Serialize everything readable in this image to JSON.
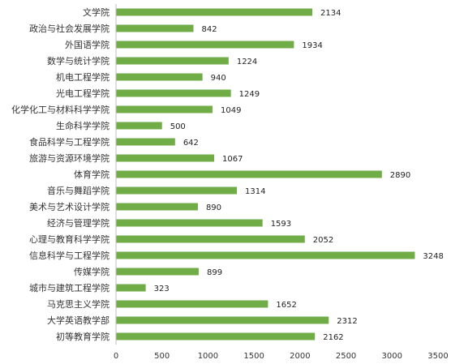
{
  "chart_data": {
    "type": "bar",
    "orientation": "horizontal",
    "title": "",
    "xlabel": "",
    "ylabel": "",
    "xlim": [
      0,
      3500
    ],
    "x_ticks": [
      0,
      500,
      1000,
      1500,
      2000,
      2500,
      3000,
      3500
    ],
    "grid": false,
    "legend": "none",
    "bar_color": "#70AD47",
    "categories": [
      "文学院",
      "政治与社会发展学院",
      "外国语学院",
      "数学与统计学院",
      "机电工程学院",
      "光电工程学院",
      "化学化工与材料科学学院",
      "生命科学学院",
      "食品科学与工程学院",
      "旅游与资源环境学院",
      "体育学院",
      "音乐与舞蹈学院",
      "美术与艺术设计学院",
      "经济与管理学院",
      "心理与教育科学学院",
      "信息科学与工程学院",
      "传媒学院",
      "城市与建筑工程学院",
      "马克思主义学院",
      "大学英语教学部",
      "初等教育学院"
    ],
    "values": [
      2134,
      842,
      1934,
      1224,
      940,
      1249,
      1049,
      500,
      642,
      1067,
      2890,
      1314,
      890,
      1593,
      2052,
      3248,
      899,
      323,
      1652,
      2312,
      2162
    ]
  }
}
